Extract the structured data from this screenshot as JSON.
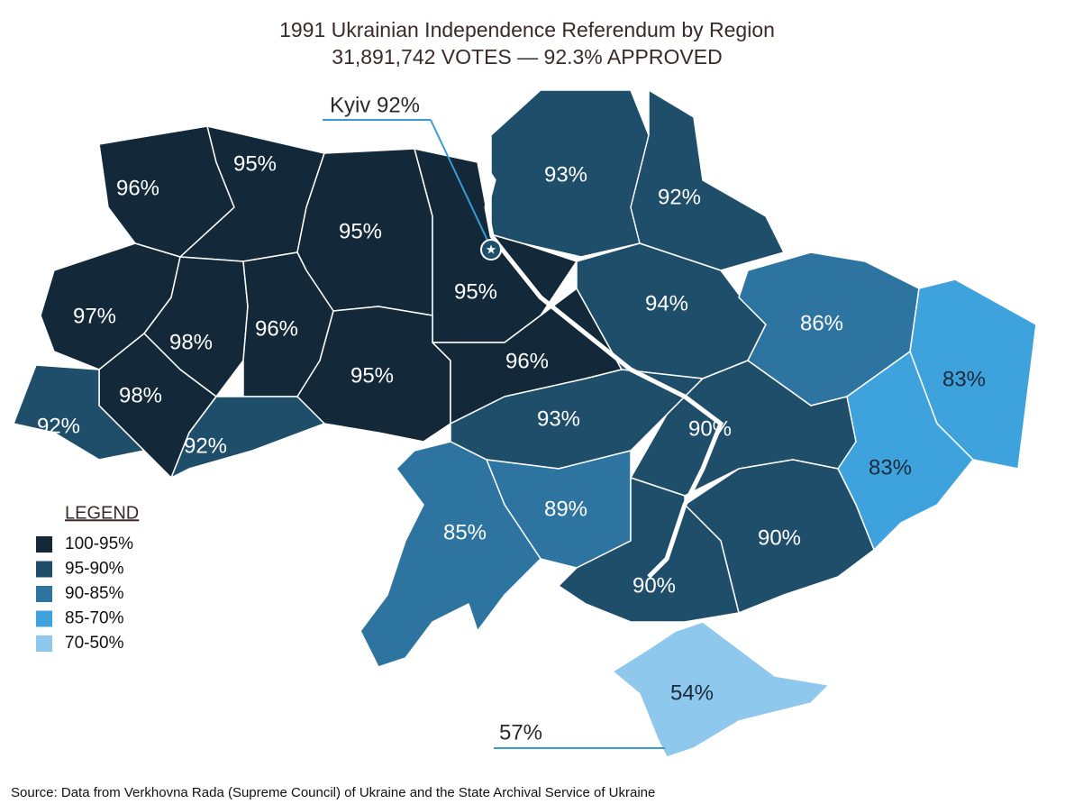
{
  "header": {
    "title": "1991 Ukrainian Independence Referendum by Region",
    "subtitle": "31,891,742 VOTES — 92.3% APPROVED"
  },
  "map": {
    "regions": [
      {
        "label": "96%",
        "color": "#13293a"
      },
      {
        "label": "95%",
        "color": "#13293a"
      },
      {
        "label": "95%",
        "color": "#13293a"
      },
      {
        "label": "95%",
        "color": "#13293a"
      },
      {
        "label": "97%",
        "color": "#13293a"
      },
      {
        "label": "98%",
        "color": "#13293a"
      },
      {
        "label": "96%",
        "color": "#13293a"
      },
      {
        "label": "95%",
        "color": "#13293a"
      },
      {
        "label": "96%",
        "color": "#13293a"
      },
      {
        "label": "98%",
        "color": "#13293a"
      },
      {
        "label": "92%",
        "color": "#1f4e6b"
      },
      {
        "label": "92%",
        "color": "#1f4e6b"
      },
      {
        "label": "93%",
        "color": "#1f4e6b"
      },
      {
        "label": "92%",
        "color": "#1f4e6b"
      },
      {
        "label": "94%",
        "color": "#1f4e6b"
      },
      {
        "label": "86%",
        "color": "#2e74a0"
      },
      {
        "label": "83%",
        "color": "#3ea3dd"
      },
      {
        "label": "83%",
        "color": "#3ea3dd"
      },
      {
        "label": "93%",
        "color": "#1f4e6b"
      },
      {
        "label": "90%",
        "color": "#1f4e6b"
      },
      {
        "label": "89%",
        "color": "#2e74a0"
      },
      {
        "label": "85%",
        "color": "#2e74a0"
      },
      {
        "label": "90%",
        "color": "#1f4e6b"
      },
      {
        "label": "90%",
        "color": "#1f4e6b"
      },
      {
        "label": "54%",
        "color": "#8ec8ec"
      }
    ],
    "callouts": [
      {
        "label": "Kyiv 92%"
      },
      {
        "label": "57%"
      }
    ]
  },
  "legend": {
    "title": "LEGEND",
    "items": [
      {
        "label": "100-95%",
        "color": "#13293a"
      },
      {
        "label": "95-90%",
        "color": "#1f4e6b"
      },
      {
        "label": "90-85%",
        "color": "#2e74a0"
      },
      {
        "label": "85-70%",
        "color": "#3ea3dd"
      },
      {
        "label": "70-50%",
        "color": "#8ec8ec"
      }
    ]
  },
  "source": "Source: Data from Verkhovna Rada (Supreme Council) of Ukraine and the State Archival Service of Ukraine"
}
